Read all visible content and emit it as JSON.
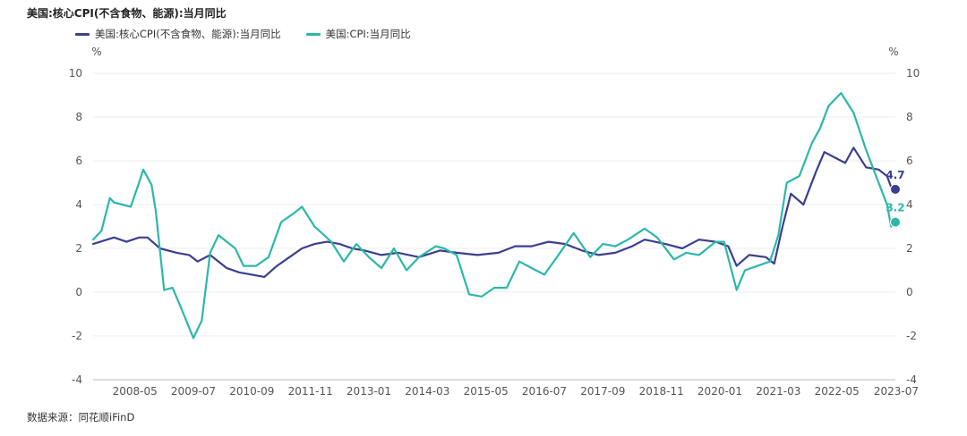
{
  "title": "美国:核心CPI(不含食物、能源):当月同比",
  "source": "数据来源：同花顺iFinD",
  "chart_data": {
    "type": "line",
    "y_unit": "%",
    "ylim": [
      -4,
      10
    ],
    "yticks": [
      "-4",
      "-2",
      "0",
      "2",
      "4",
      "6",
      "8",
      "10"
    ],
    "x_start": "2007-07",
    "x_end": "2023-07",
    "xticks": [
      "2008-05",
      "2009-07",
      "2010-09",
      "2011-11",
      "2013-01",
      "2014-03",
      "2015-05",
      "2016-07",
      "2017-09",
      "2018-11",
      "2020-01",
      "2021-03",
      "2022-05",
      "2023-07"
    ],
    "grid": true,
    "legend_position": "top-left",
    "series": [
      {
        "name": "美国:核心CPI(不含食物、能源):当月同比",
        "color": "#3b3f8f",
        "end_label": "4.7",
        "points": [
          [
            "2007-07",
            2.2
          ],
          [
            "2007-12",
            2.5
          ],
          [
            "2008-03",
            2.3
          ],
          [
            "2008-06",
            2.5
          ],
          [
            "2008-08",
            2.5
          ],
          [
            "2008-11",
            2.0
          ],
          [
            "2009-03",
            1.8
          ],
          [
            "2009-06",
            1.7
          ],
          [
            "2009-08",
            1.4
          ],
          [
            "2009-11",
            1.7
          ],
          [
            "2010-03",
            1.1
          ],
          [
            "2010-06",
            0.9
          ],
          [
            "2010-09",
            0.8
          ],
          [
            "2010-12",
            0.7
          ],
          [
            "2011-03",
            1.2
          ],
          [
            "2011-06",
            1.6
          ],
          [
            "2011-09",
            2.0
          ],
          [
            "2011-12",
            2.2
          ],
          [
            "2012-03",
            2.3
          ],
          [
            "2012-06",
            2.2
          ],
          [
            "2012-09",
            2.0
          ],
          [
            "2012-12",
            1.9
          ],
          [
            "2013-04",
            1.7
          ],
          [
            "2013-08",
            1.8
          ],
          [
            "2014-01",
            1.6
          ],
          [
            "2014-06",
            1.9
          ],
          [
            "2014-10",
            1.8
          ],
          [
            "2015-03",
            1.7
          ],
          [
            "2015-08",
            1.8
          ],
          [
            "2015-12",
            2.1
          ],
          [
            "2016-04",
            2.1
          ],
          [
            "2016-08",
            2.3
          ],
          [
            "2016-12",
            2.2
          ],
          [
            "2017-04",
            1.9
          ],
          [
            "2017-08",
            1.7
          ],
          [
            "2017-12",
            1.8
          ],
          [
            "2018-04",
            2.1
          ],
          [
            "2018-07",
            2.4
          ],
          [
            "2018-12",
            2.2
          ],
          [
            "2019-04",
            2.0
          ],
          [
            "2019-08",
            2.4
          ],
          [
            "2019-12",
            2.3
          ],
          [
            "2020-03",
            2.1
          ],
          [
            "2020-05",
            1.2
          ],
          [
            "2020-08",
            1.7
          ],
          [
            "2020-12",
            1.6
          ],
          [
            "2021-02",
            1.3
          ],
          [
            "2021-04",
            3.0
          ],
          [
            "2021-06",
            4.5
          ],
          [
            "2021-09",
            4.0
          ],
          [
            "2021-12",
            5.5
          ],
          [
            "2022-02",
            6.4
          ],
          [
            "2022-04",
            6.2
          ],
          [
            "2022-07",
            5.9
          ],
          [
            "2022-09",
            6.6
          ],
          [
            "2022-12",
            5.7
          ],
          [
            "2023-03",
            5.6
          ],
          [
            "2023-05",
            5.3
          ],
          [
            "2023-06",
            4.8
          ],
          [
            "2023-07",
            4.7
          ]
        ]
      },
      {
        "name": "美国:CPI:当月同比",
        "color": "#2bb8a8",
        "end_label": "3.2",
        "points": [
          [
            "2007-07",
            2.4
          ],
          [
            "2007-09",
            2.8
          ],
          [
            "2007-11",
            4.3
          ],
          [
            "2007-12",
            4.1
          ],
          [
            "2008-02",
            4.0
          ],
          [
            "2008-04",
            3.9
          ],
          [
            "2008-06",
            5.0
          ],
          [
            "2008-07",
            5.6
          ],
          [
            "2008-09",
            4.9
          ],
          [
            "2008-10",
            3.7
          ],
          [
            "2008-12",
            0.1
          ],
          [
            "2009-02",
            0.2
          ],
          [
            "2009-04",
            -0.7
          ],
          [
            "2009-07",
            -2.1
          ],
          [
            "2009-09",
            -1.3
          ],
          [
            "2009-11",
            1.8
          ],
          [
            "2010-01",
            2.6
          ],
          [
            "2010-03",
            2.3
          ],
          [
            "2010-05",
            2.0
          ],
          [
            "2010-07",
            1.2
          ],
          [
            "2010-10",
            1.2
          ],
          [
            "2011-01",
            1.6
          ],
          [
            "2011-04",
            3.2
          ],
          [
            "2011-07",
            3.6
          ],
          [
            "2011-09",
            3.9
          ],
          [
            "2011-12",
            3.0
          ],
          [
            "2012-04",
            2.3
          ],
          [
            "2012-07",
            1.4
          ],
          [
            "2012-10",
            2.2
          ],
          [
            "2013-01",
            1.6
          ],
          [
            "2013-04",
            1.1
          ],
          [
            "2013-07",
            2.0
          ],
          [
            "2013-10",
            1.0
          ],
          [
            "2014-01",
            1.6
          ],
          [
            "2014-05",
            2.1
          ],
          [
            "2014-07",
            2.0
          ],
          [
            "2014-10",
            1.7
          ],
          [
            "2015-01",
            -0.1
          ],
          [
            "2015-04",
            -0.2
          ],
          [
            "2015-07",
            0.2
          ],
          [
            "2015-10",
            0.2
          ],
          [
            "2016-01",
            1.4
          ],
          [
            "2016-04",
            1.1
          ],
          [
            "2016-07",
            0.8
          ],
          [
            "2016-10",
            1.6
          ],
          [
            "2017-02",
            2.7
          ],
          [
            "2017-06",
            1.6
          ],
          [
            "2017-09",
            2.2
          ],
          [
            "2017-12",
            2.1
          ],
          [
            "2018-03",
            2.4
          ],
          [
            "2018-07",
            2.9
          ],
          [
            "2018-10",
            2.5
          ],
          [
            "2019-02",
            1.5
          ],
          [
            "2019-05",
            1.8
          ],
          [
            "2019-08",
            1.7
          ],
          [
            "2019-12",
            2.3
          ],
          [
            "2020-02",
            2.3
          ],
          [
            "2020-05",
            0.1
          ],
          [
            "2020-07",
            1.0
          ],
          [
            "2020-10",
            1.2
          ],
          [
            "2021-01",
            1.4
          ],
          [
            "2021-03",
            2.6
          ],
          [
            "2021-05",
            5.0
          ],
          [
            "2021-08",
            5.3
          ],
          [
            "2021-11",
            6.8
          ],
          [
            "2022-01",
            7.5
          ],
          [
            "2022-03",
            8.5
          ],
          [
            "2022-06",
            9.1
          ],
          [
            "2022-09",
            8.2
          ],
          [
            "2022-12",
            6.5
          ],
          [
            "2023-03",
            5.0
          ],
          [
            "2023-05",
            4.0
          ],
          [
            "2023-06",
            3.0
          ],
          [
            "2023-07",
            3.2
          ]
        ]
      }
    ]
  }
}
